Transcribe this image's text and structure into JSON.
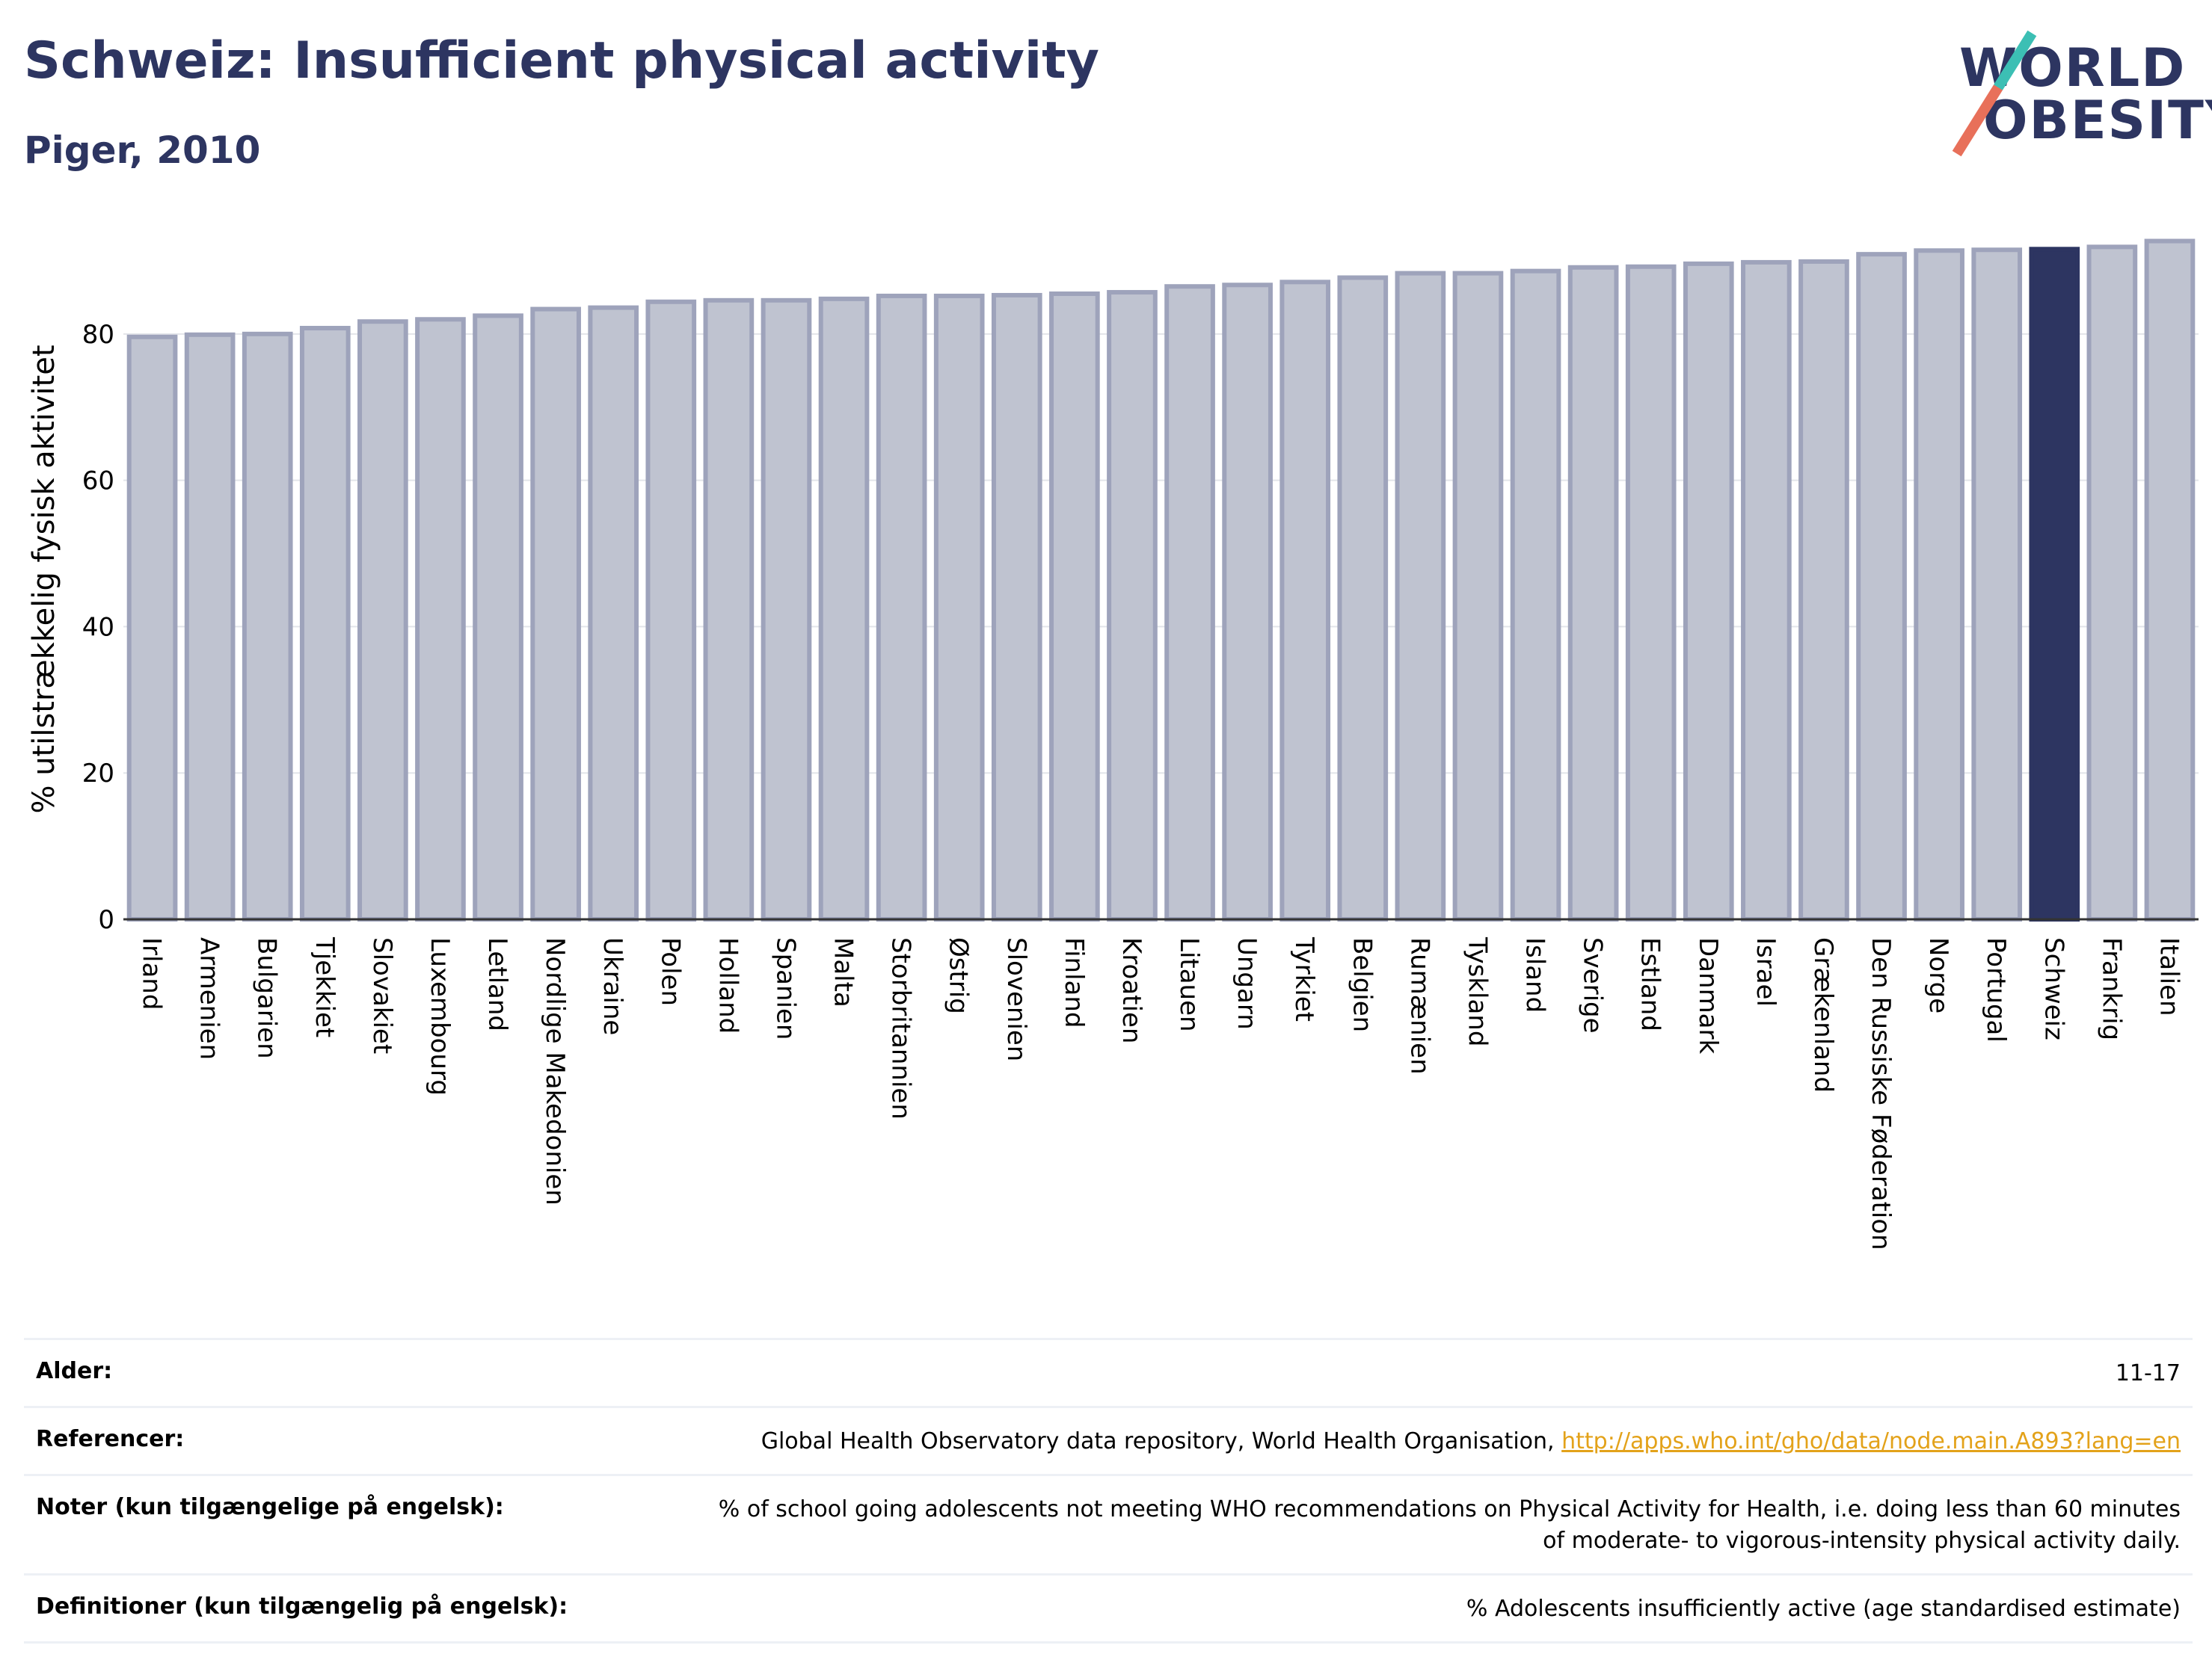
{
  "header": {
    "title": "Schweiz: Insufficient physical activity",
    "subtitle": "Piger, 2010"
  },
  "logo": {
    "line1": "WORLD",
    "line2": "OBESITY"
  },
  "colors": {
    "bar": "#bfc3d0",
    "bar_border": "#9ea3bb",
    "highlight": "#2d3561",
    "title": "#2d3561",
    "grid": "#e3e5ea"
  },
  "chart_data": {
    "type": "bar",
    "ylabel": "% utilstrækkelig fysisk aktivitet",
    "ylim": [
      0,
      95
    ],
    "yticks": [
      0,
      20,
      40,
      60,
      80
    ],
    "grid": true,
    "highlight": "Schweiz",
    "categories": [
      "Irland",
      "Armenien",
      "Bulgarien",
      "Tjekkiet",
      "Slovakiet",
      "Luxembourg",
      "Letland",
      "Nordlige Makedonien",
      "Ukraine",
      "Polen",
      "Holland",
      "Spanien",
      "Malta",
      "Storbritannien",
      "Østrig",
      "Slovenien",
      "Finland",
      "Kroatien",
      "Litauen",
      "Ungarn",
      "Tyrkiet",
      "Belgien",
      "Rumænien",
      "Tyskland",
      "Island",
      "Sverige",
      "Estland",
      "Danmark",
      "Israel",
      "Grækenland",
      "Den Russiske Føderation",
      "Norge",
      "Portugal",
      "Schweiz",
      "Frankrig",
      "Italien"
    ],
    "values": [
      79.6,
      79.9,
      80.0,
      80.8,
      81.7,
      82.0,
      82.5,
      83.4,
      83.6,
      84.4,
      84.6,
      84.6,
      84.8,
      85.2,
      85.2,
      85.3,
      85.5,
      85.7,
      86.5,
      86.7,
      87.1,
      87.7,
      88.3,
      88.3,
      88.6,
      89.1,
      89.2,
      89.6,
      89.8,
      89.9,
      90.9,
      91.4,
      91.5,
      91.6,
      91.9,
      92.7
    ]
  },
  "info": {
    "age_label": "Alder:",
    "age_value": "11-17",
    "refs_label": "Referencer:",
    "refs_text": "Global Health Observatory data repository, World Health Organisation,",
    "refs_link": "http://apps.who.int/gho/data/node.main.A893?lang=en",
    "notes_label": "Noter (kun tilgængelige på engelsk):",
    "notes_value": "% of school going adolescents not meeting WHO recommendations on Physical Activity for Health, i.e. doing less than 60 minutes of moderate- to vigorous-intensity physical activity daily.",
    "defs_label": "Definitioner (kun tilgængelig på engelsk):",
    "defs_value": "% Adolescents insufficiently active (age standardised estimate)"
  }
}
